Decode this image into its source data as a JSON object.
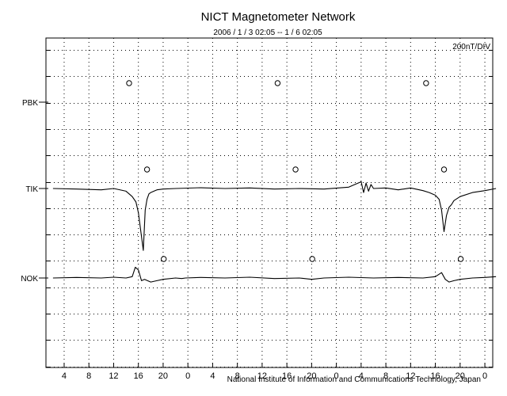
{
  "chart_data": {
    "type": "line",
    "title": "NICT Magnetometer Network",
    "subtitle": "2006 / 1 / 3  02:05 --  1 / 6  02:05",
    "scale_label": "200nT/DIV",
    "credit": "National Institute of Information and Communications Technology, Japan",
    "x_tick_labels": [
      "4",
      "8",
      "12",
      "16",
      "20",
      "0",
      "4",
      "8",
      "12",
      "16",
      "20",
      "0",
      "4",
      "8",
      "12",
      "16",
      "20",
      "0"
    ],
    "x_hours": [
      4,
      8,
      12,
      16,
      20,
      24,
      28,
      32,
      36,
      40,
      44,
      48,
      52,
      56,
      60,
      64,
      68,
      72
    ],
    "xlim_hours": [
      2.083,
      74.083
    ],
    "grid": true,
    "stations": [
      {
        "name": "PBK",
        "has_data": false,
        "marker_hours": [
          14.5,
          38.5,
          62.5
        ]
      },
      {
        "name": "TIK",
        "has_data": true,
        "marker_hours": [
          17.4,
          41.4,
          65.4
        ]
      },
      {
        "name": "NOK",
        "has_data": true,
        "marker_hours": [
          20.1,
          44.1,
          68.1
        ]
      }
    ],
    "series": [
      {
        "name": "TIK",
        "x": [
          2.2,
          6,
          10,
          12,
          14,
          15,
          15.6,
          16,
          16.4,
          16.8,
          17.1,
          17.4,
          17.7,
          18,
          18.5,
          19,
          20,
          22,
          26,
          30,
          34,
          38,
          42,
          46,
          50,
          52,
          52.4,
          52.8,
          53.2,
          53.6,
          54,
          56,
          58,
          60,
          62,
          63,
          64,
          64.6,
          65,
          65.4,
          65.8,
          66.2,
          66.6,
          67,
          68,
          70,
          72,
          73.8
        ],
        "y": [
          0.0,
          -0.02,
          -0.05,
          0.0,
          -0.1,
          -0.3,
          -0.5,
          -0.9,
          -1.6,
          -2.3,
          -0.8,
          -0.4,
          -0.2,
          -0.15,
          -0.1,
          -0.05,
          -0.02,
          0.0,
          0.03,
          0.0,
          0.02,
          -0.02,
          0.0,
          -0.02,
          0.05,
          0.25,
          -0.15,
          0.2,
          -0.1,
          0.15,
          0.0,
          0.02,
          -0.05,
          0.02,
          -0.08,
          -0.15,
          -0.25,
          -0.4,
          -0.8,
          -1.6,
          -1.0,
          -0.7,
          -0.6,
          -0.45,
          -0.3,
          -0.15,
          -0.08,
          0.0
        ]
      },
      {
        "name": "NOK",
        "x": [
          2.2,
          6,
          10,
          12,
          14,
          15,
          15.5,
          16,
          16.5,
          17,
          18,
          19,
          20,
          22,
          23,
          23.6,
          26,
          30,
          34,
          38,
          42,
          44,
          46,
          50,
          54,
          58,
          62,
          64,
          65,
          65.6,
          66.2,
          67,
          68,
          70,
          72,
          73.8
        ],
        "y": [
          0.0,
          0.02,
          0.0,
          0.03,
          0.0,
          0.05,
          0.4,
          0.3,
          -0.1,
          -0.05,
          -0.15,
          -0.1,
          -0.05,
          0.0,
          -0.02,
          0.0,
          0.02,
          0.0,
          0.03,
          -0.02,
          0.0,
          -0.05,
          0.0,
          0.03,
          0.0,
          0.02,
          0.0,
          0.05,
          0.2,
          -0.05,
          -0.15,
          -0.1,
          -0.05,
          0.0,
          0.02,
          0.05
        ]
      }
    ]
  }
}
